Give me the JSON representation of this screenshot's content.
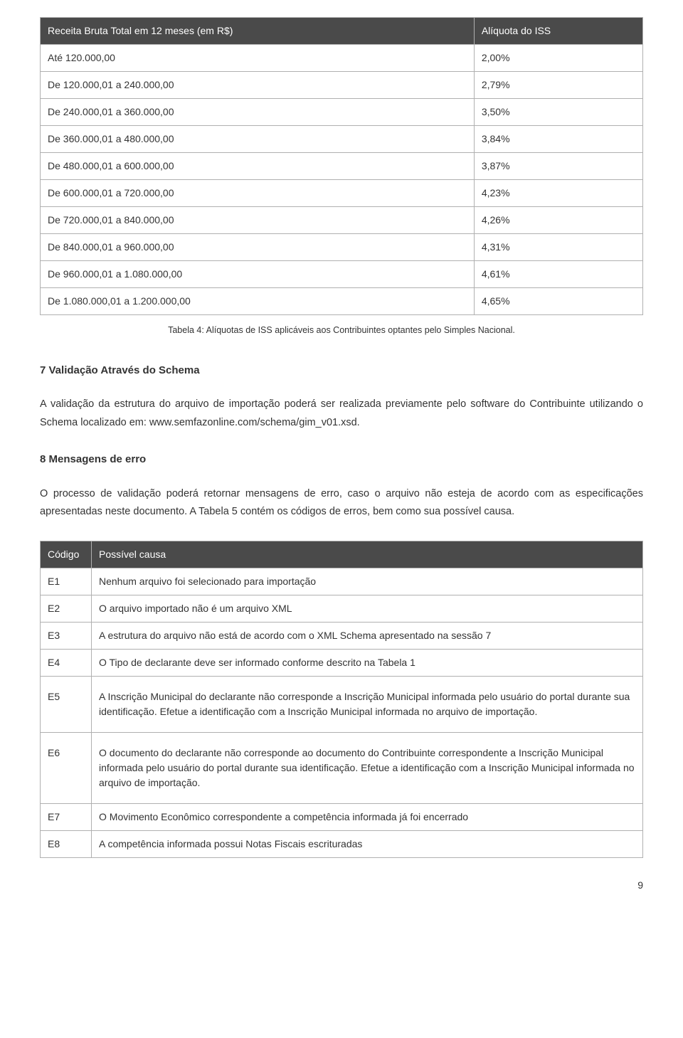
{
  "rate_table": {
    "headers": [
      "Receita Bruta Total em 12 meses (em R$)",
      "Alíquota do ISS"
    ],
    "rows": [
      [
        "Até 120.000,00",
        "2,00%"
      ],
      [
        "De 120.000,01 a 240.000,00",
        "2,79%"
      ],
      [
        "De 240.000,01 a 360.000,00",
        "3,50%"
      ],
      [
        "De 360.000,01 a 480.000,00",
        "3,84%"
      ],
      [
        "De 480.000,01 a 600.000,00",
        "3,87%"
      ],
      [
        "De 600.000,01 a 720.000,00",
        "4,23%"
      ],
      [
        "De 720.000,01 a 840.000,00",
        "4,26%"
      ],
      [
        "De 840.000,01 a 960.000,00",
        "4,31%"
      ],
      [
        "De 960.000,01 a 1.080.000,00",
        "4,61%"
      ],
      [
        "De 1.080.000,01 a 1.200.000,00",
        "4,65%"
      ]
    ],
    "caption": "Tabela 4: Alíquotas de ISS aplicáveis aos Contribuintes optantes pelo Simples Nacional."
  },
  "section7": {
    "title": "7 Validação Através do Schema",
    "body": "A validação da estrutura do arquivo de importação poderá ser realizada previamente pelo software do Contribuinte utilizando o Schema localizado em: www.semfazonline.com/schema/gim_v01.xsd."
  },
  "section8": {
    "title": "8 Mensagens de erro",
    "body": "O processo de validação poderá retornar mensagens de erro, caso o arquivo não esteja de acordo com as especificações apresentadas neste documento. A Tabela 5 contém os códigos de erros, bem como sua possível causa."
  },
  "error_table": {
    "headers": [
      "Código",
      "Possível causa"
    ],
    "rows": [
      {
        "code": "E1",
        "cause": "Nenhum arquivo foi selecionado para importação"
      },
      {
        "code": "E2",
        "cause": "O arquivo importado não é um arquivo XML"
      },
      {
        "code": "E3",
        "cause": "A estrutura do arquivo não está de acordo com o XML Schema apresentado na sessão 7"
      },
      {
        "code": "E4",
        "cause": "O Tipo de declarante deve ser informado conforme descrito na Tabela 1"
      },
      {
        "code": "E5",
        "cause": "A Inscrição Municipal do declarante não corresponde a Inscrição Municipal informada pelo usuário do portal durante sua identificação. Efetue a identificação com a Inscrição Municipal informada no arquivo de importação."
      },
      {
        "code": "E6",
        "cause": "O documento do declarante não corresponde ao documento do Contribuinte correspondente a Inscrição Municipal informada pelo usuário do portal durante sua identificação. Efetue a identificação com a Inscrição Municipal informada no arquivo de importação."
      },
      {
        "code": "E7",
        "cause": "O Movimento Econômico correspondente a competência informada já foi encerrado"
      },
      {
        "code": "E8",
        "cause": "A competência informada possui Notas Fiscais escrituradas"
      }
    ]
  },
  "page_number": "9",
  "colors": {
    "header_bg": "#4a4a4a",
    "header_fg": "#ffffff",
    "border": "#b0b0b0",
    "text": "#333333",
    "background": "#ffffff"
  }
}
